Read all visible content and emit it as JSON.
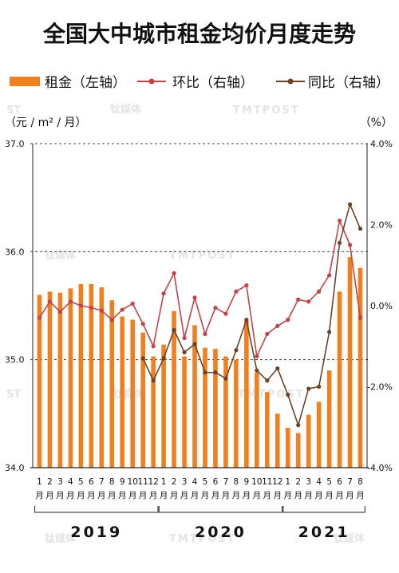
{
  "chart_data": {
    "type": "bar+line",
    "title": "全国大中城市租金均价月度走势",
    "left_unit": "（元 / m² / 月）",
    "right_unit": "（%）",
    "legend": [
      {
        "label": "租金（左轴）",
        "kind": "bar",
        "color": "#f07f1f"
      },
      {
        "label": "环比（右轴）",
        "kind": "line",
        "color": "#c0444a"
      },
      {
        "label": "同比（右轴）",
        "kind": "line",
        "color": "#6b4428"
      }
    ],
    "left_axis": {
      "ticks": [
        "34.0",
        "35.0",
        "36.0",
        "37.0"
      ],
      "ylim": [
        34.0,
        37.0
      ]
    },
    "right_axis": {
      "ticks": [
        "-4.0%",
        "-2.0%",
        "0.0%",
        "2.0%",
        "4.0%"
      ],
      "ylim": [
        -4.0,
        4.0
      ]
    },
    "month_labels": [
      "1",
      "2",
      "3",
      "4",
      "5",
      "6",
      "7",
      "8",
      "9",
      "10",
      "11",
      "12",
      "1",
      "2",
      "3",
      "4",
      "5",
      "6",
      "7",
      "8",
      "9",
      "10",
      "11",
      "12",
      "1",
      "2",
      "3",
      "4",
      "5",
      "6",
      "7",
      "8"
    ],
    "month_suffix": "月",
    "years": [
      {
        "label": "2019",
        "start": 0,
        "end": 11
      },
      {
        "label": "2020",
        "start": 12,
        "end": 23
      },
      {
        "label": "2021",
        "start": 24,
        "end": 31
      }
    ],
    "rent": [
      35.6,
      35.63,
      35.62,
      35.66,
      35.7,
      35.7,
      35.67,
      35.55,
      35.4,
      35.37,
      35.25,
      35.03,
      35.14,
      35.45,
      35.03,
      35.32,
      35.11,
      35.1,
      35.03,
      35.0,
      35.36,
      34.88,
      34.7,
      34.5,
      34.37,
      34.32,
      34.49,
      34.61,
      34.9,
      35.63,
      35.95,
      35.85
    ],
    "mom": [
      -0.3,
      0.1,
      -0.15,
      0.1,
      0.0,
      -0.05,
      -0.12,
      -0.35,
      -0.1,
      0.05,
      -0.45,
      -1.0,
      0.3,
      0.8,
      -0.8,
      0.2,
      -0.7,
      -0.05,
      -0.2,
      0.35,
      0.5,
      -1.25,
      -0.7,
      -0.5,
      -0.35,
      0.15,
      0.1,
      0.35,
      0.75,
      2.1,
      1.5,
      -0.3
    ],
    "yoy": [
      null,
      null,
      null,
      null,
      null,
      null,
      null,
      null,
      null,
      null,
      -1.3,
      -1.85,
      -1.3,
      -0.6,
      -1.15,
      -0.95,
      -1.65,
      -1.65,
      -1.8,
      -1.1,
      -0.35,
      -1.6,
      -1.85,
      -1.55,
      -2.2,
      -2.95,
      -2.05,
      -2.0,
      -0.65,
      1.55,
      2.5,
      1.9
    ],
    "watermarks": [
      "钛媒体",
      "TMTPOST",
      "ST"
    ]
  }
}
